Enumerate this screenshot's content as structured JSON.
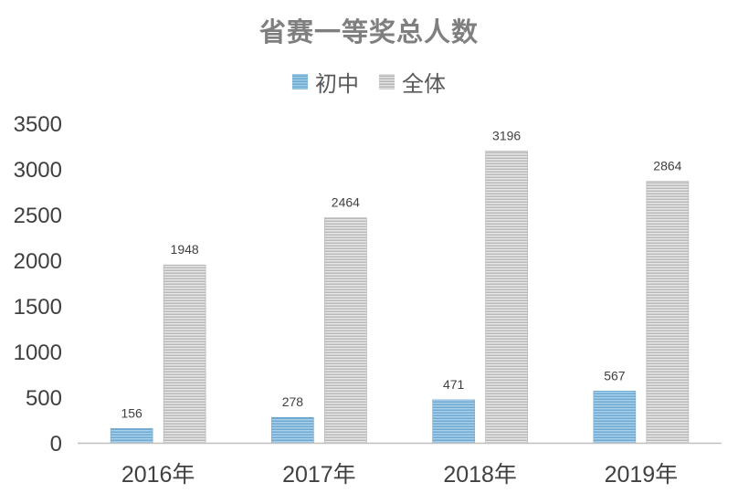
{
  "chart_data": {
    "type": "bar",
    "title": "省赛一等奖总人数",
    "categories": [
      "2016年",
      "2017年",
      "2018年",
      "2019年"
    ],
    "series": [
      {
        "name": "初中",
        "values": [
          156,
          278,
          471,
          567
        ],
        "color": "#7ab3d9"
      },
      {
        "name": "全体",
        "values": [
          1948,
          2464,
          3196,
          2864
        ],
        "color": "#c8c8c8"
      }
    ],
    "yticks": [
      "0",
      "500",
      "1000",
      "1500",
      "2000",
      "2500",
      "3000",
      "3500"
    ],
    "ylim": [
      0,
      3500
    ],
    "grid": false,
    "legend_position": "top"
  }
}
